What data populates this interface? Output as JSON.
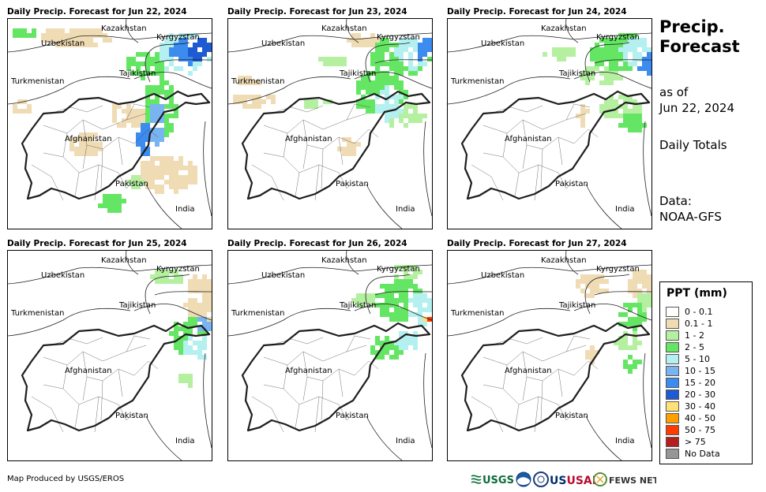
{
  "panels": [
    {
      "title": "Daily Precip. Forecast for Jun 22, 2024"
    },
    {
      "title": "Daily Precip. Forecast for Jun 23, 2024"
    },
    {
      "title": "Daily Precip. Forecast for Jun 24, 2024"
    },
    {
      "title": "Daily Precip. Forecast for Jun 25, 2024"
    },
    {
      "title": "Daily Precip. Forecast for Jun 26, 2024"
    },
    {
      "title": "Daily Precip. Forecast for Jun 27, 2024"
    }
  ],
  "countries": {
    "kazakhstan": "Kazakhstan",
    "kyrgyzstan": "Kyrgyzstan",
    "uzbekistan": "Uzbekistan",
    "tajikistan": "Tajikistan",
    "turkmenistan": "Turkmenistan",
    "afghanistan": "Afghanistan",
    "pakistan": "Pakistan",
    "india": "India"
  },
  "sidebar": {
    "title_line1": "Precip.",
    "title_line2": "Forecast",
    "as_of_label": "as of",
    "as_of_date": "Jun 22, 2024",
    "totals": "Daily Totals",
    "data_label": "Data:",
    "data_source": "NOAA-GFS"
  },
  "legend": {
    "title": "PPT (mm)",
    "items": [
      {
        "label": "0 - 0.1",
        "color": "#ffffff"
      },
      {
        "label": "0.1 - 1",
        "color": "#f0dcb4"
      },
      {
        "label": "1 - 2",
        "color": "#b4f0a0"
      },
      {
        "label": "2 - 5",
        "color": "#64e664"
      },
      {
        "label": "5 - 10",
        "color": "#b4f0f0"
      },
      {
        "label": "10 - 15",
        "color": "#78b4f0"
      },
      {
        "label": "15 - 20",
        "color": "#3c8cf0"
      },
      {
        "label": "20 - 30",
        "color": "#1e5ad2"
      },
      {
        "label": "30 - 40",
        "color": "#ffe178"
      },
      {
        "label": "40 - 50",
        "color": "#ffa000"
      },
      {
        "label": "50 - 75",
        "color": "#ff3c00"
      },
      {
        "label": "> 75",
        "color": "#b41e1e"
      },
      {
        "label": "No Data",
        "color": "#969696"
      }
    ]
  },
  "footer": {
    "credit": "Map Produced by USGS/EROS"
  },
  "logos": {
    "usgs": "USGS",
    "usaid": "USAID",
    "fewsnet": "FEWS NET"
  }
}
